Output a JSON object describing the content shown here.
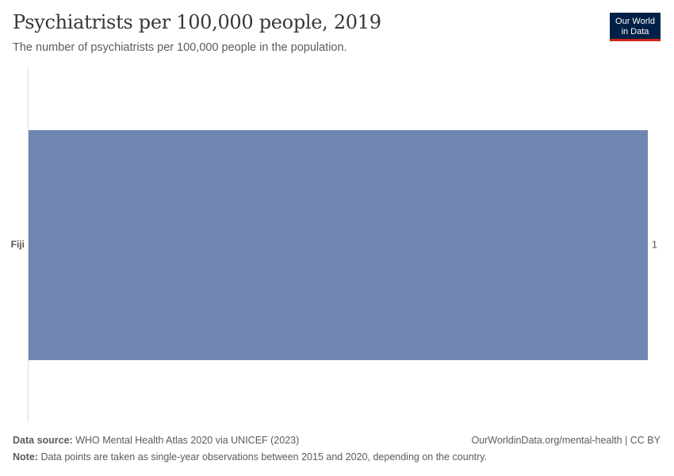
{
  "header": {
    "title": "Psychiatrists per 100,000 people, 2019",
    "subtitle": "The number of psychiatrists per 100,000 people in the population."
  },
  "logo": {
    "line1": "Our World",
    "line2": "in Data"
  },
  "footer": {
    "source_label": "Data source:",
    "source_text": "WHO Mental Health Atlas 2020 via UNICEF (2023)",
    "attribution": "OurWorldinData.org/mental-health | CC BY",
    "note_label": "Note:",
    "note_text": "Data points are taken as single-year observations between 2015 and 2020, depending on the country."
  },
  "colors": {
    "bar": "#6f87b0",
    "axis": "#dddddd",
    "logo_bg": "#002147",
    "logo_accent": "#ce261e"
  },
  "chart_data": {
    "type": "bar",
    "orientation": "horizontal",
    "categories": [
      "Fiji"
    ],
    "values": [
      1
    ],
    "value_labels": [
      "1"
    ],
    "xlim": [
      0,
      1
    ],
    "grid": false,
    "legend": "none"
  }
}
